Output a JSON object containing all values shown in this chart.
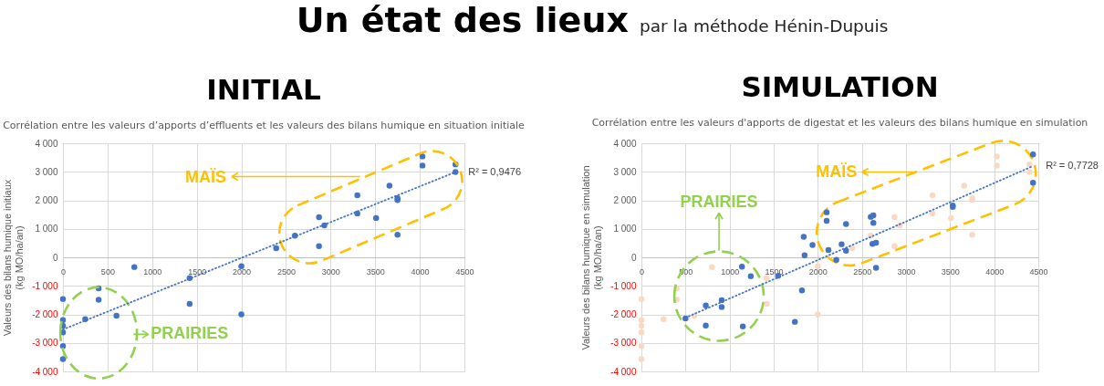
{
  "chart_data": [
    {
      "type": "scatter",
      "title": "INITIAL",
      "subtitle": "Corrélation entre les valeurs d’apports d’effluents et les valeurs des bilans humique en situation initiale",
      "ylabel": "Valeurs des bilans humique initiaux (kg MO/ha/an)",
      "xlim": [
        0,
        4500
      ],
      "ylim": [
        -4000,
        4000
      ],
      "xticks": [
        0,
        500,
        1000,
        1500,
        2000,
        2500,
        3000,
        3500,
        4000,
        4500
      ],
      "yticks": [
        {
          "value": -4000,
          "label": "-4 000"
        },
        {
          "value": -3000,
          "label": "-3 000"
        },
        {
          "value": -2000,
          "label": "-2 000"
        },
        {
          "value": -1000,
          "label": "-1 000"
        },
        0,
        {
          "value": 1000,
          "label": "1 000"
        },
        {
          "value": 2000,
          "label": "2 000"
        },
        {
          "value": 3000,
          "label": "3 000"
        },
        {
          "value": 4000,
          "label": "4 000"
        }
      ],
      "grid": true,
      "marker": "circle",
      "annotations": [
        "Un état des lieux",
        "par la méthode Hénin-Dupuis",
        "MAÏS",
        "PRAIRIES",
        {
          "text": "R² = 0,9476",
          "x": 4400,
          "y": 2990
        }
      ],
      "series": [
        {
          "type": "scatter",
          "color": "#4472c4",
          "x": [
            0,
            0,
            0,
            0,
            0,
            0,
            250,
            400,
            400,
            600,
            800,
            1420,
            1420,
            2000,
            2000,
            2390,
            2600,
            2870,
            2870,
            2930,
            3300,
            3300,
            3510,
            3660,
            3750,
            3750,
            3750,
            4030,
            4030,
            4400,
            4400
          ],
          "values": [
            -1460,
            -2200,
            -2400,
            -2630,
            -3110,
            -3570,
            -2170,
            -1090,
            -1490,
            -2050,
            -340,
            -730,
            -1630,
            -310,
            -2000,
            320,
            760,
            1410,
            390,
            1120,
            2180,
            1540,
            1380,
            2510,
            2070,
            2010,
            790,
            3540,
            3220,
            3260,
            2990
          ]
        },
        {
          "type": "line",
          "color": "#4472c4",
          "x": [
            0,
            4400
          ],
          "values": [
            -2530,
            2990
          ],
          "line_style": "dotted",
          "marker": "none"
        }
      ]
    },
    {
      "type": "scatter",
      "title": "SIMULATION",
      "subtitle": "Corrélation entre les valeurs d'apports de digestat et les valeurs des bilans humique en simulation",
      "ylabel": "Valeurs des bilans humique en simulation (kg MO/ha/an)",
      "xlim": [
        0,
        4500
      ],
      "ylim": [
        -4000,
        4000
      ],
      "xticks": [
        0,
        500,
        1000,
        1500,
        2000,
        2500,
        3000,
        3500,
        4000,
        4500
      ],
      "yticks": [
        {
          "value": -4000,
          "label": "-4 000"
        },
        {
          "value": -3000,
          "label": "-3 000"
        },
        {
          "value": -2000,
          "label": "-2 000"
        },
        {
          "value": -1000,
          "label": "-1 000"
        },
        0,
        {
          "value": 1000,
          "label": "1 000"
        },
        {
          "value": 2000,
          "label": "2 000"
        },
        {
          "value": 3000,
          "label": "3 000"
        },
        {
          "value": 4000,
          "label": "4 000"
        }
      ],
      "grid": true,
      "marker": "circle",
      "annotations": [
        "PRAIRIES",
        "MAÏS",
        {
          "text": "R² = 0,7728",
          "x": 4440,
          "y": 3200
        }
      ],
      "series": [
        {
          "type": "scatter",
          "color": "#f9d9c4",
          "x": [
            0,
            0,
            0,
            0,
            0,
            0,
            250,
            400,
            400,
            600,
            800,
            1420,
            1420,
            2000,
            2000,
            2390,
            2600,
            2870,
            2870,
            2930,
            3300,
            3300,
            3510,
            3660,
            3750,
            3750,
            3750,
            4030,
            4030,
            4400,
            4400
          ],
          "values": [
            -1460,
            -2200,
            -2400,
            -2630,
            -3110,
            -3570,
            -2170,
            -1090,
            -1490,
            -2050,
            -340,
            -730,
            -1630,
            -310,
            -2000,
            320,
            760,
            1410,
            390,
            1120,
            2180,
            1540,
            1380,
            2510,
            2070,
            2010,
            790,
            3540,
            3220,
            3260,
            2990
          ]
        },
        {
          "type": "scatter",
          "color": "#4472c4",
          "x": [
            500,
            730,
            730,
            910,
            910,
            1140,
            1150,
            1240,
            1550,
            1740,
            1820,
            1840,
            1850,
            1940,
            2100,
            2100,
            2120,
            2210,
            2270,
            2320,
            2320,
            2600,
            2630,
            2630,
            2620,
            2660,
            2660,
            3530,
            3530,
            4440,
            4440
          ],
          "values": [
            -2140,
            -1690,
            -2390,
            -1500,
            -1740,
            -330,
            -2420,
            -660,
            -650,
            -2260,
            -1160,
            720,
            70,
            430,
            1580,
            1280,
            260,
            -90,
            460,
            1170,
            230,
            1420,
            1470,
            1210,
            470,
            510,
            -370,
            1820,
            1770,
            3610,
            2620
          ]
        },
        {
          "type": "line",
          "color": "#4472c4",
          "x": [
            500,
            4440
          ],
          "values": [
            -2120,
            3200
          ],
          "line_style": "dotted",
          "marker": "none"
        }
      ]
    }
  ]
}
